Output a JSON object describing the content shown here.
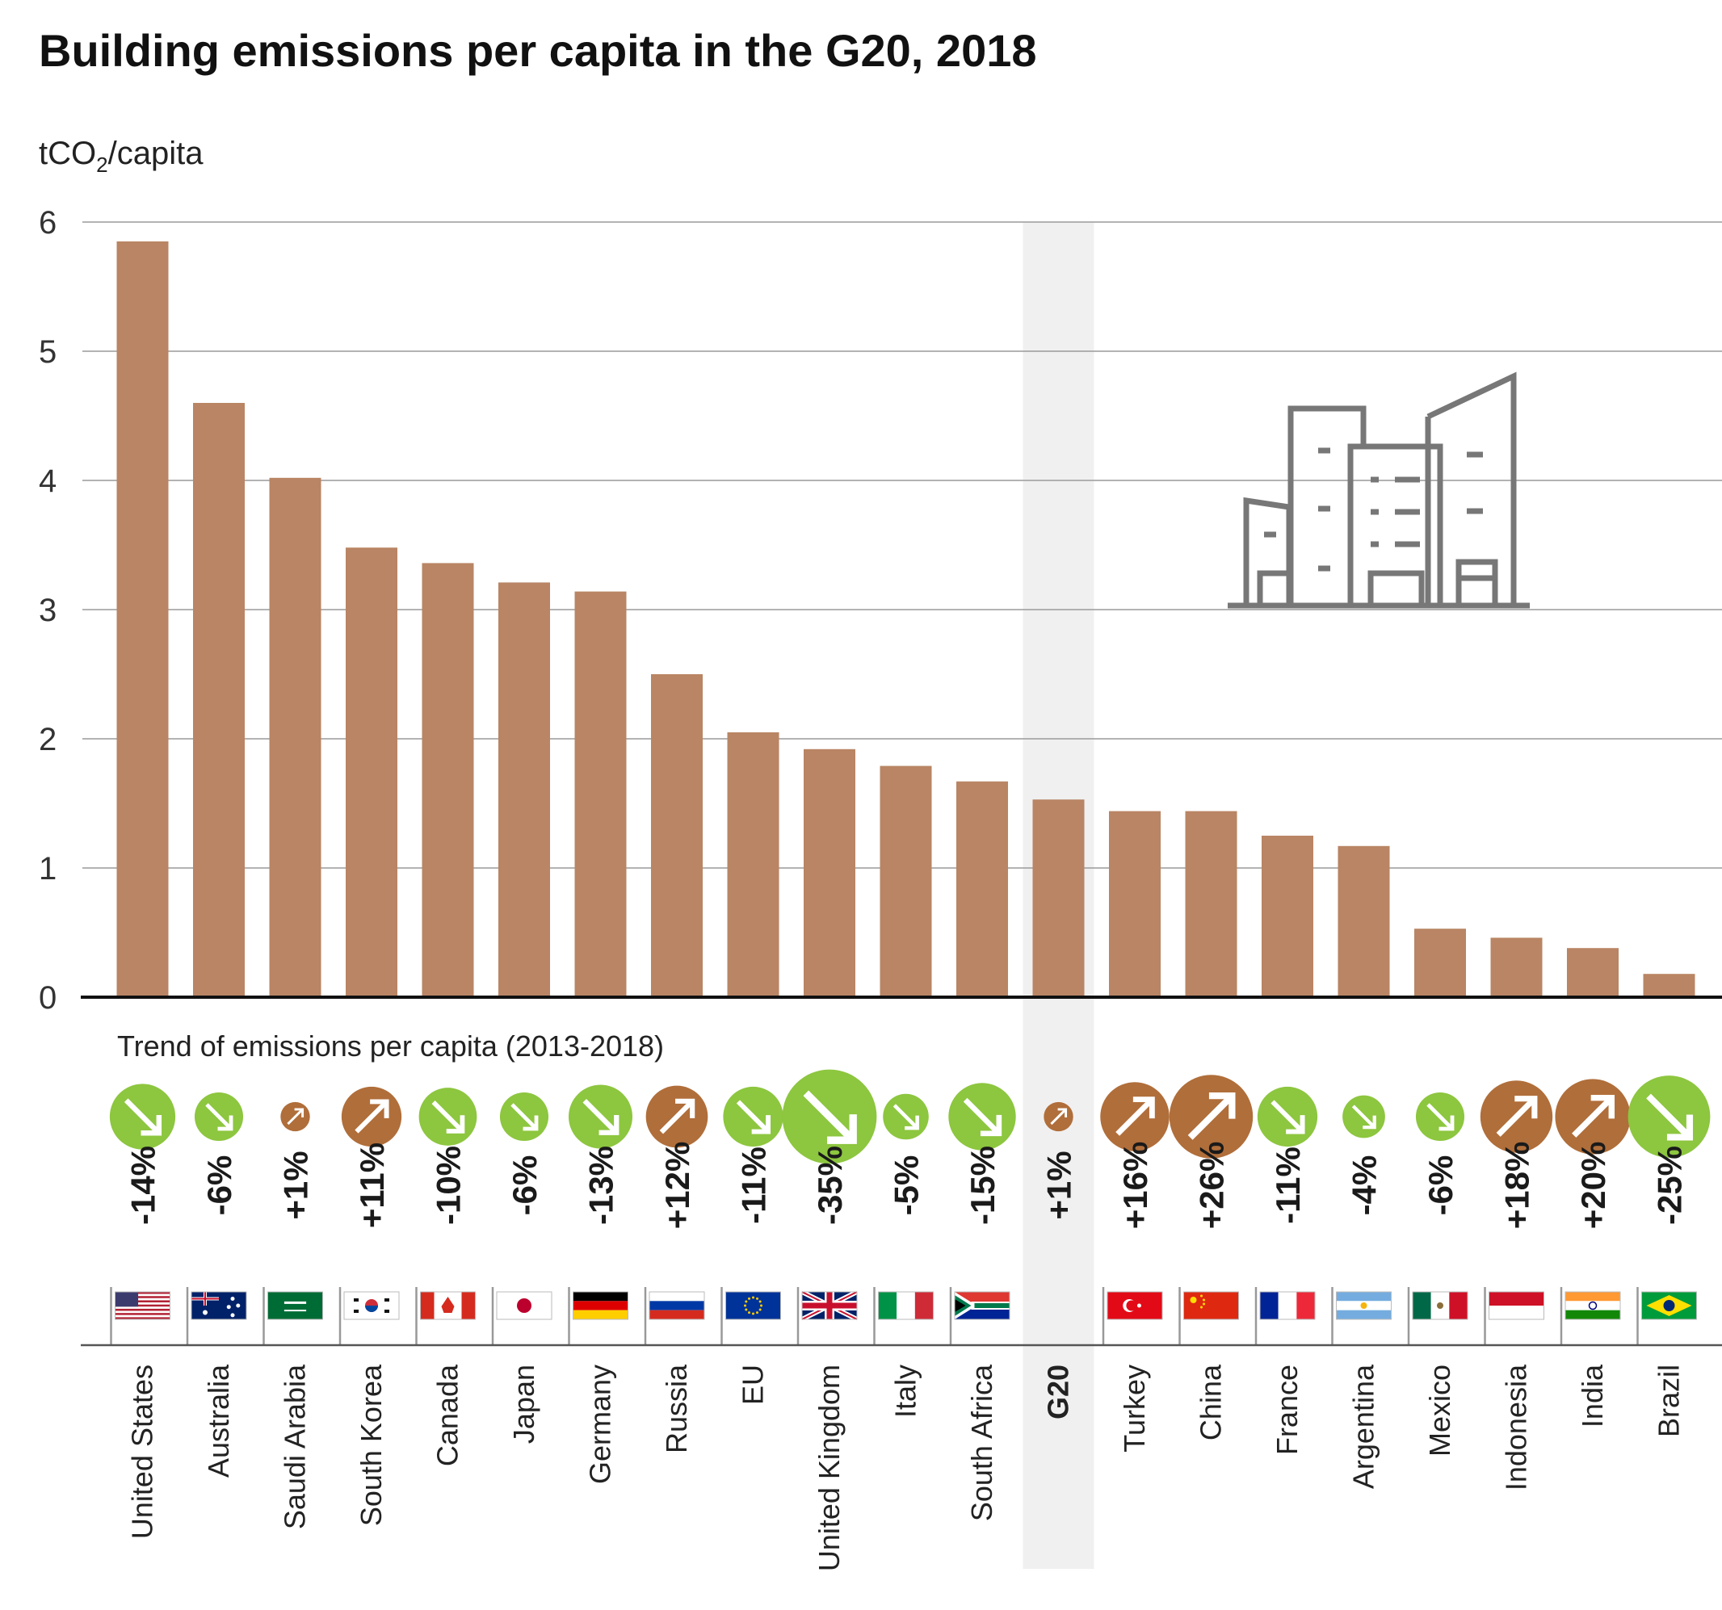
{
  "chart_data": {
    "type": "bar",
    "title": "Building emissions per capita in the G20, 2018",
    "ylabel_main": "tCO",
    "ylabel_sub": "2",
    "ylabel_rest": "/capita",
    "ylim": [
      0,
      6
    ],
    "yticks": [
      0,
      1,
      2,
      3,
      4,
      5,
      6
    ],
    "grid": true,
    "highlight": "G20",
    "categories": [
      "United States",
      "Australia",
      "Saudi Arabia",
      "South Korea",
      "Canada",
      "Japan",
      "Germany",
      "Russia",
      "EU",
      "United Kingdom",
      "Italy",
      "South Africa",
      "G20",
      "Turkey",
      "China",
      "France",
      "Argentina",
      "Mexico",
      "Indonesia",
      "India",
      "Brazil"
    ],
    "values": [
      5.85,
      4.6,
      4.02,
      3.48,
      3.36,
      3.21,
      3.14,
      2.5,
      2.05,
      1.92,
      1.79,
      1.67,
      1.53,
      1.44,
      1.44,
      1.25,
      1.17,
      0.53,
      0.46,
      0.38,
      0.18
    ],
    "trend_title": "Trend of emissions per capita (2013-2018)",
    "trend_labels": [
      "-14%",
      "-6%",
      "+1%",
      "+11%",
      "-10%",
      "-6%",
      "-13%",
      "+12%",
      "-11%",
      "-35%",
      "-5%",
      "-15%",
      "+1%",
      "+16%",
      "+26%",
      "-11%",
      "-4%",
      "-6%",
      "+18%",
      "+20%",
      "-25%"
    ],
    "trend_values": [
      -14,
      -6,
      1,
      11,
      -10,
      -6,
      -13,
      12,
      -11,
      -35,
      -5,
      -15,
      1,
      16,
      26,
      -11,
      -4,
      -6,
      18,
      20,
      -25
    ],
    "flags": [
      "us",
      "au",
      "sa",
      "kr",
      "ca",
      "jp",
      "de",
      "ru",
      "eu",
      "gb",
      "it",
      "za",
      "",
      "tr",
      "cn",
      "fr",
      "ar",
      "mx",
      "id",
      "in",
      "br"
    ],
    "colors": {
      "bar": "#b98564",
      "decrease": "#8dc63f",
      "increase": "#b06e3a",
      "grid": "#9a9a9a",
      "highlight_band": "#f0f0f0",
      "icon": "#777777"
    }
  }
}
